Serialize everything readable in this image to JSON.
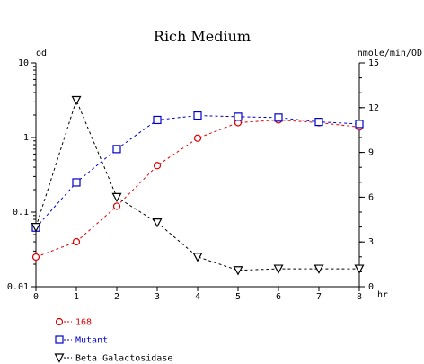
{
  "chart_data": {
    "type": "line",
    "title": "Rich Medium",
    "x": [
      0,
      1,
      2,
      3,
      4,
      5,
      6,
      7,
      8
    ],
    "x_unit": "hr",
    "xlim": [
      0,
      8
    ],
    "x_ticks": [
      "0",
      "1",
      "2",
      "3",
      "4",
      "5",
      "6",
      "7",
      "8"
    ],
    "y_left": {
      "unit": "od",
      "scale": "log",
      "lim": [
        0.01,
        10
      ],
      "ticks": [
        {
          "value": 10,
          "label": "10"
        },
        {
          "value": 1,
          "label": "1"
        },
        {
          "value": 0.1,
          "label": "0.1"
        },
        {
          "value": 0.01,
          "label": "0.01"
        }
      ]
    },
    "y_right": {
      "unit": "nmole/min/OD",
      "scale": "linear",
      "lim": [
        0,
        15
      ],
      "ticks": [
        {
          "value": 15,
          "label": "15"
        },
        {
          "value": 12,
          "label": "12"
        },
        {
          "value": 9,
          "label": "9"
        },
        {
          "value": 6,
          "label": "6"
        },
        {
          "value": 3,
          "label": "3"
        },
        {
          "value": 0,
          "label": "0"
        }
      ]
    },
    "series": [
      {
        "name": "168",
        "axis": "left",
        "marker": "circle",
        "color": "#dd0000",
        "values": [
          0.025,
          0.04,
          0.12,
          0.42,
          0.98,
          1.58,
          1.72,
          1.58,
          1.38
        ]
      },
      {
        "name": "Mutant",
        "axis": "left",
        "marker": "square",
        "color": "#0000cc",
        "values": [
          0.062,
          0.25,
          0.7,
          1.72,
          1.97,
          1.9,
          1.85,
          1.62,
          1.52
        ]
      },
      {
        "name": "Beta Galactosidase",
        "axis": "right",
        "marker": "triangle-down",
        "color": "#000000",
        "values": [
          4.0,
          12.5,
          6.0,
          4.3,
          2.0,
          1.1,
          1.2,
          1.2,
          1.2
        ]
      }
    ],
    "legend_position": "bottom-left",
    "grid": false
  }
}
